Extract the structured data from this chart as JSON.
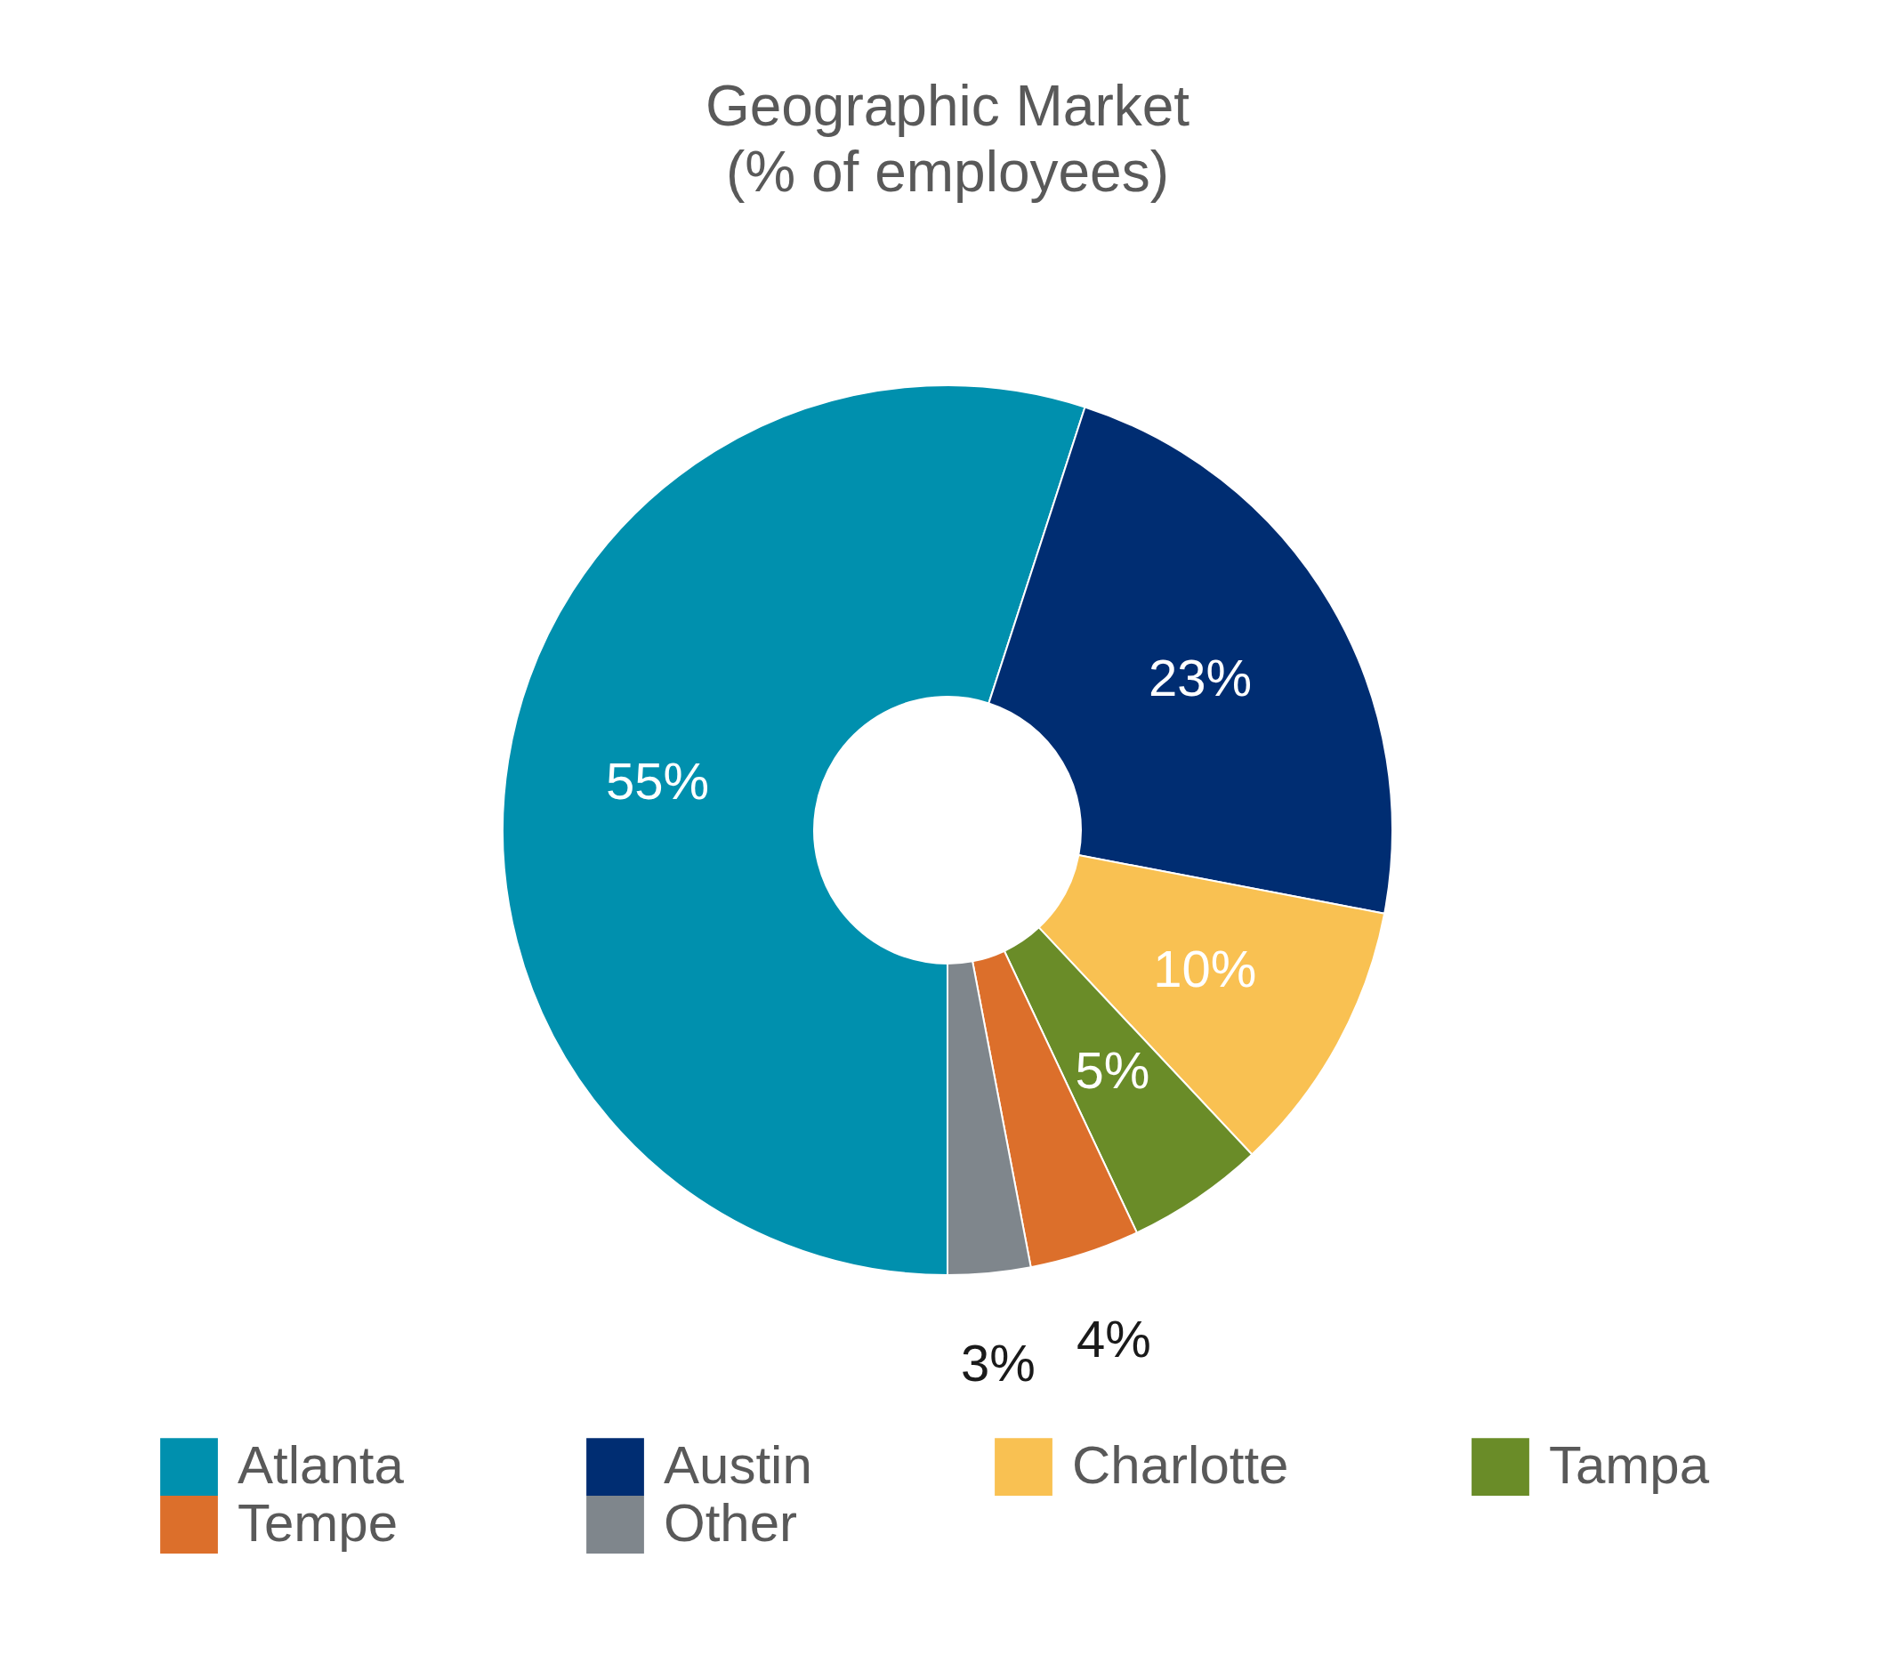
{
  "chart_data": {
    "type": "donut",
    "title": "Geographic Market",
    "subtitle": "(% of employees)",
    "categories": [
      "Atlanta",
      "Austin",
      "Charlotte",
      "Tampa",
      "Tempe",
      "Other"
    ],
    "values": [
      55,
      23,
      10,
      5,
      4,
      3
    ],
    "colors": [
      "#0090ae",
      "#002d72",
      "#f9c152",
      "#6a8c28",
      "#dc6f2b",
      "#7f868c"
    ],
    "value_labels": [
      "55%",
      "23%",
      "10%",
      "5%",
      "4%",
      "3%"
    ],
    "legend": "bottom"
  }
}
